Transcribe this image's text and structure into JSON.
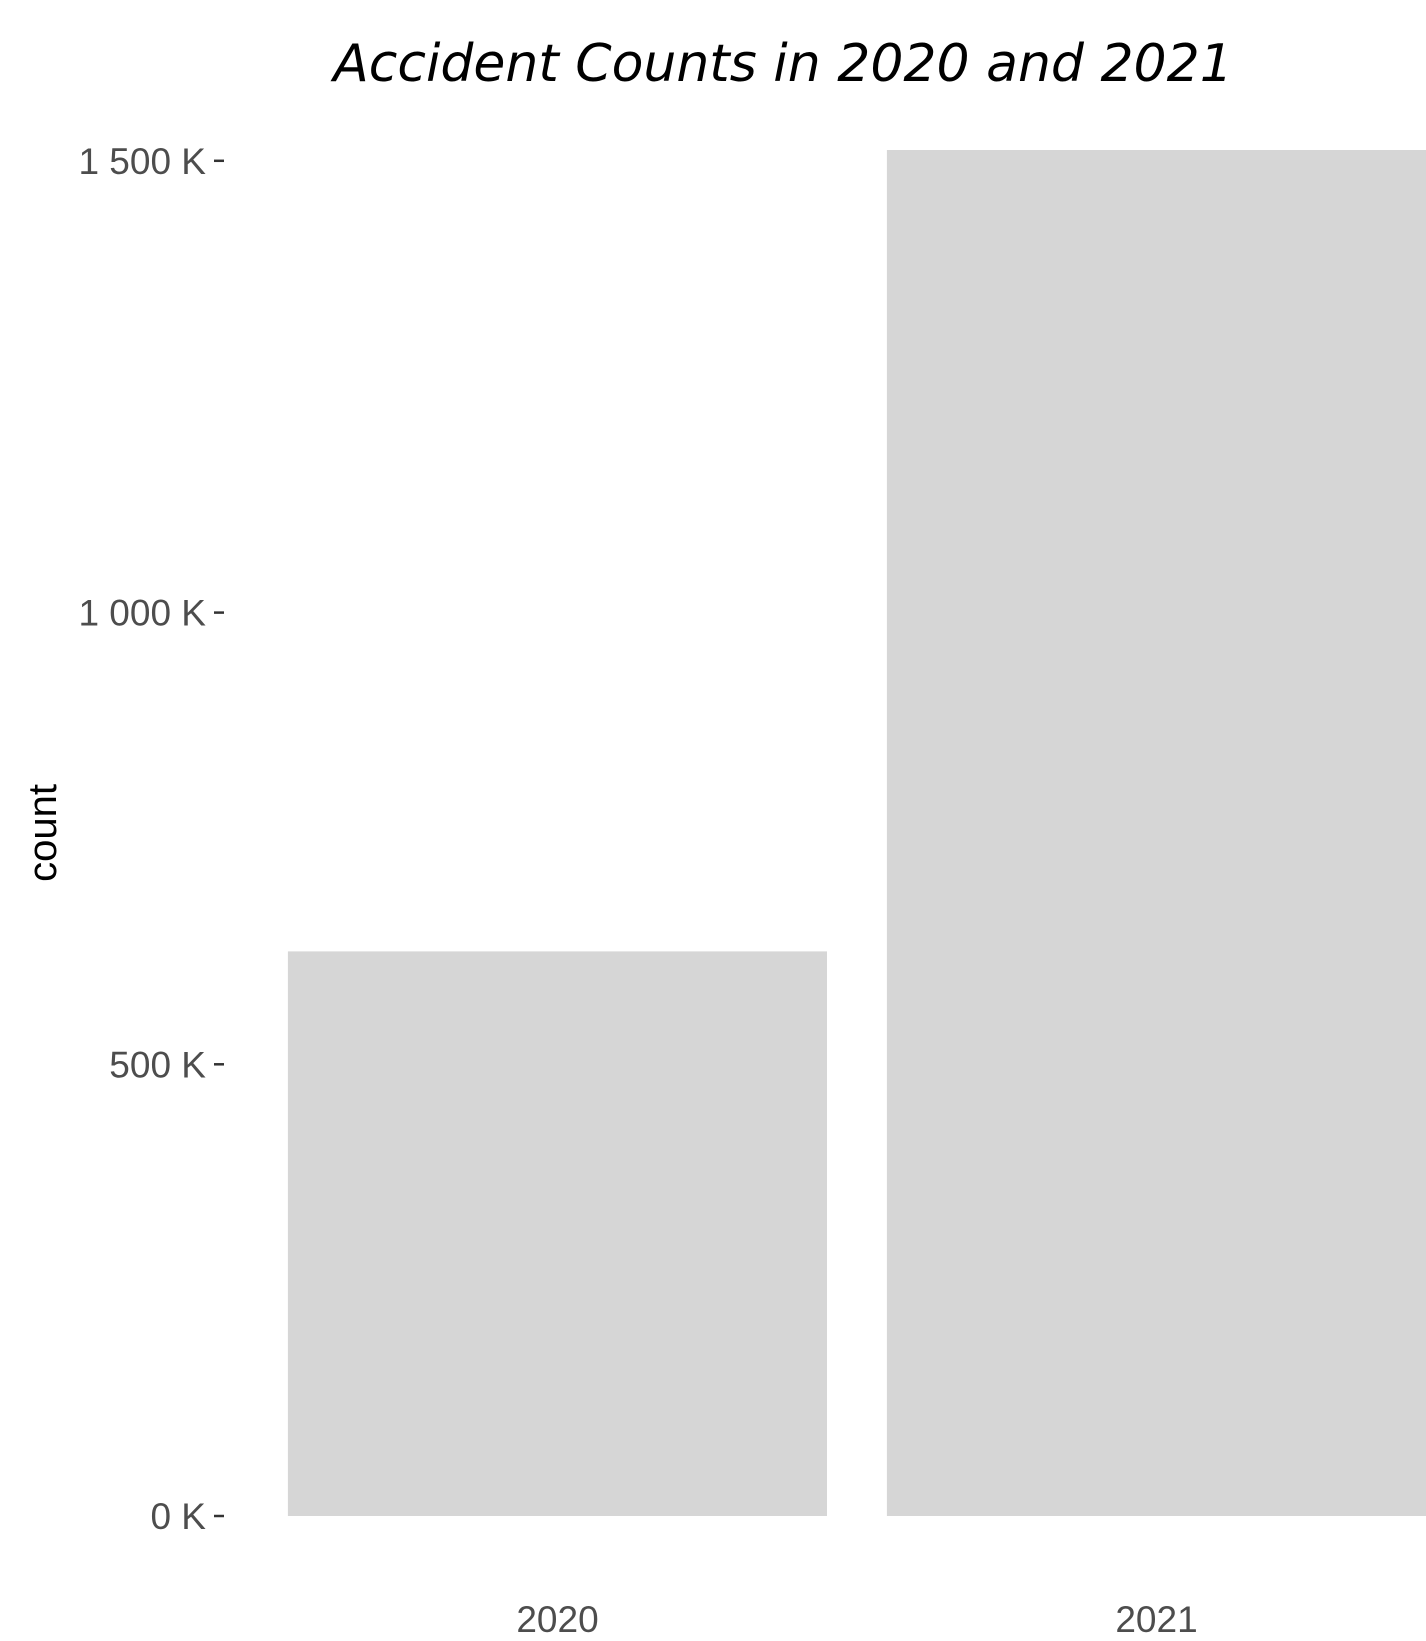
{
  "chart_data": {
    "type": "bar",
    "title": "Accident Counts in 2020 and 2021",
    "xlabel": "",
    "ylabel": "count",
    "categories": [
      "2020",
      "2021"
    ],
    "values": [
      625000,
      1512000
    ],
    "ylim": [
      0,
      1512000
    ],
    "yticks": [
      0,
      500000,
      1000000,
      1500000
    ],
    "ytick_labels": [
      "0 K",
      "500 K",
      "1 000 K",
      "1 500 K"
    ],
    "grid": false,
    "legend": "none",
    "bar_color": "#d6d6d6"
  }
}
